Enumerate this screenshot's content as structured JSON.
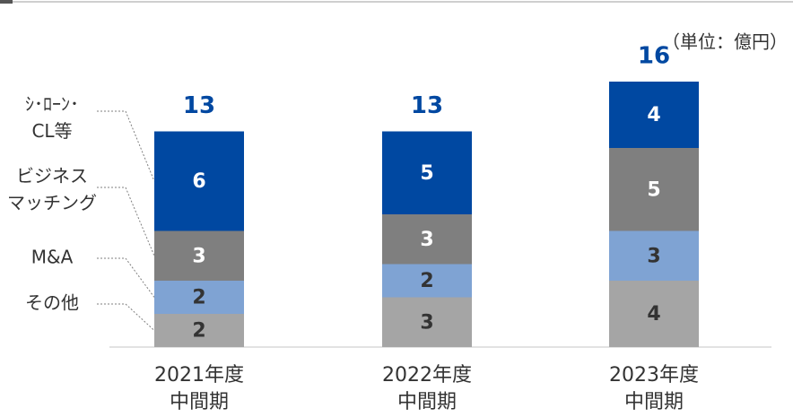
{
  "chart_data": {
    "type": "stacked_bar",
    "unit_label": "（単位：億円）",
    "categories": [
      "2021年度\n中間期",
      "2022年度\n中間期",
      "2023年度\n中間期"
    ],
    "series": [
      {
        "name": "その他",
        "color": "#a5a5a5",
        "values": [
          2,
          3,
          4
        ]
      },
      {
        "name": "M&A",
        "color": "#7fa3d3",
        "values": [
          2,
          2,
          3
        ]
      },
      {
        "name": "ビジネス\nマッチング",
        "color": "#7f7f7f",
        "values": [
          3,
          3,
          5
        ]
      },
      {
        "name": "ｼ･ﾛｰﾝ･\nCL等",
        "color": "#0048a1",
        "values": [
          6,
          5,
          4
        ]
      }
    ],
    "totals": [
      13,
      13,
      16
    ],
    "ylim": [
      0,
      16
    ]
  }
}
